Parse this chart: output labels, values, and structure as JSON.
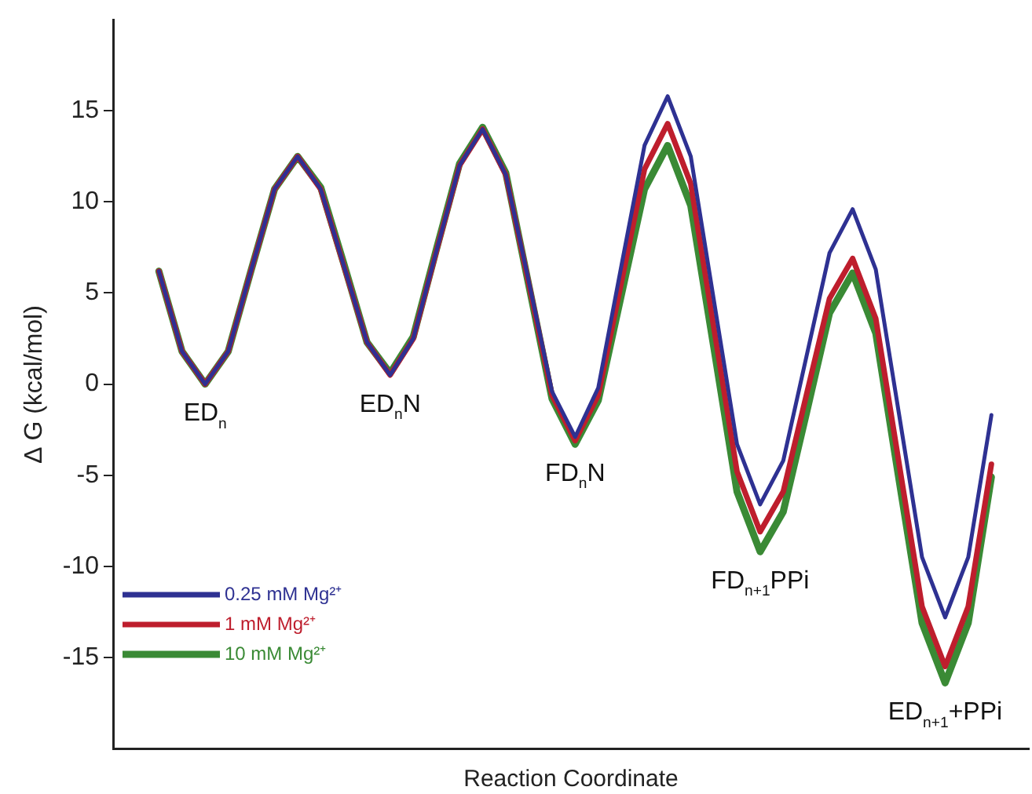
{
  "chart_data": {
    "type": "line",
    "xlabel": "Reaction Coordinate",
    "ylabel": "∆ G (kcal/mol)",
    "ylim": [
      -20,
      20
    ],
    "yticks": [
      -15,
      -10,
      -5,
      0,
      5,
      10,
      15
    ],
    "categories": [
      null,
      null,
      null,
      null,
      null,
      null,
      null,
      null,
      null,
      null,
      null,
      null,
      null,
      null,
      null,
      null,
      null,
      null,
      null,
      null,
      null,
      null,
      null,
      null,
      null,
      null,
      null,
      null,
      null,
      null,
      null,
      null,
      null,
      null,
      null,
      null,
      null
    ],
    "series": [
      {
        "name": "0.25 mM Mg²⁺",
        "color": "#2e3192",
        "values": [
          6.2,
          1.8,
          0,
          1.8,
          6.3,
          10.7,
          12.5,
          10.7,
          6.5,
          2.3,
          0.5,
          2.5,
          7.3,
          12.0,
          14,
          11.5,
          5.6,
          -0.4,
          -2.9,
          -0.2,
          6.5,
          13.1,
          15.8,
          12.5,
          4.6,
          -3.3,
          -6.6,
          -4.2,
          1.5,
          7.2,
          9.6,
          6.3,
          -1.6,
          -9.5,
          -12.8,
          -9.5,
          -1.7
        ]
      },
      {
        "name": "1 mM Mg²⁺",
        "color": "#be1e2d",
        "values": [
          6.2,
          1.8,
          0,
          1.8,
          6.3,
          10.7,
          12.5,
          10.7,
          6.5,
          2.3,
          0.5,
          2.5,
          7.3,
          12.0,
          14,
          11.5,
          5.5,
          -0.6,
          -3.1,
          -0.6,
          5.6,
          11.8,
          14.3,
          11.0,
          3.1,
          -4.8,
          -8.1,
          -5.9,
          -0.6,
          4.7,
          6.9,
          3.6,
          -4.3,
          -12.2,
          -15.5,
          -12.2,
          -4.4
        ]
      },
      {
        "name": "10 mM Mg²⁺",
        "color": "#3a8a35",
        "values": [
          6.2,
          1.8,
          0,
          1.8,
          6.3,
          10.7,
          12.5,
          10.8,
          6.6,
          2.3,
          0.6,
          2.6,
          7.4,
          12.1,
          14.1,
          11.6,
          5.4,
          -0.8,
          -3.3,
          -0.9,
          4.9,
          10.7,
          13.1,
          9.8,
          2.0,
          -5.9,
          -9.2,
          -7.0,
          -1.6,
          3.9,
          6.1,
          2.8,
          -5.2,
          -13.1,
          -16.4,
          -13.1,
          -5.1
        ]
      }
    ],
    "annotations": [
      "ED$_{n}$",
      "ED$_{n}$N",
      "FD$_{n}$N",
      "FD$_{n+1}$PPi",
      "ED$_{n+1}$+PPi"
    ],
    "legend": "bottom left",
    "grid": false,
    "marker": "none",
    "line_style": "solid"
  }
}
